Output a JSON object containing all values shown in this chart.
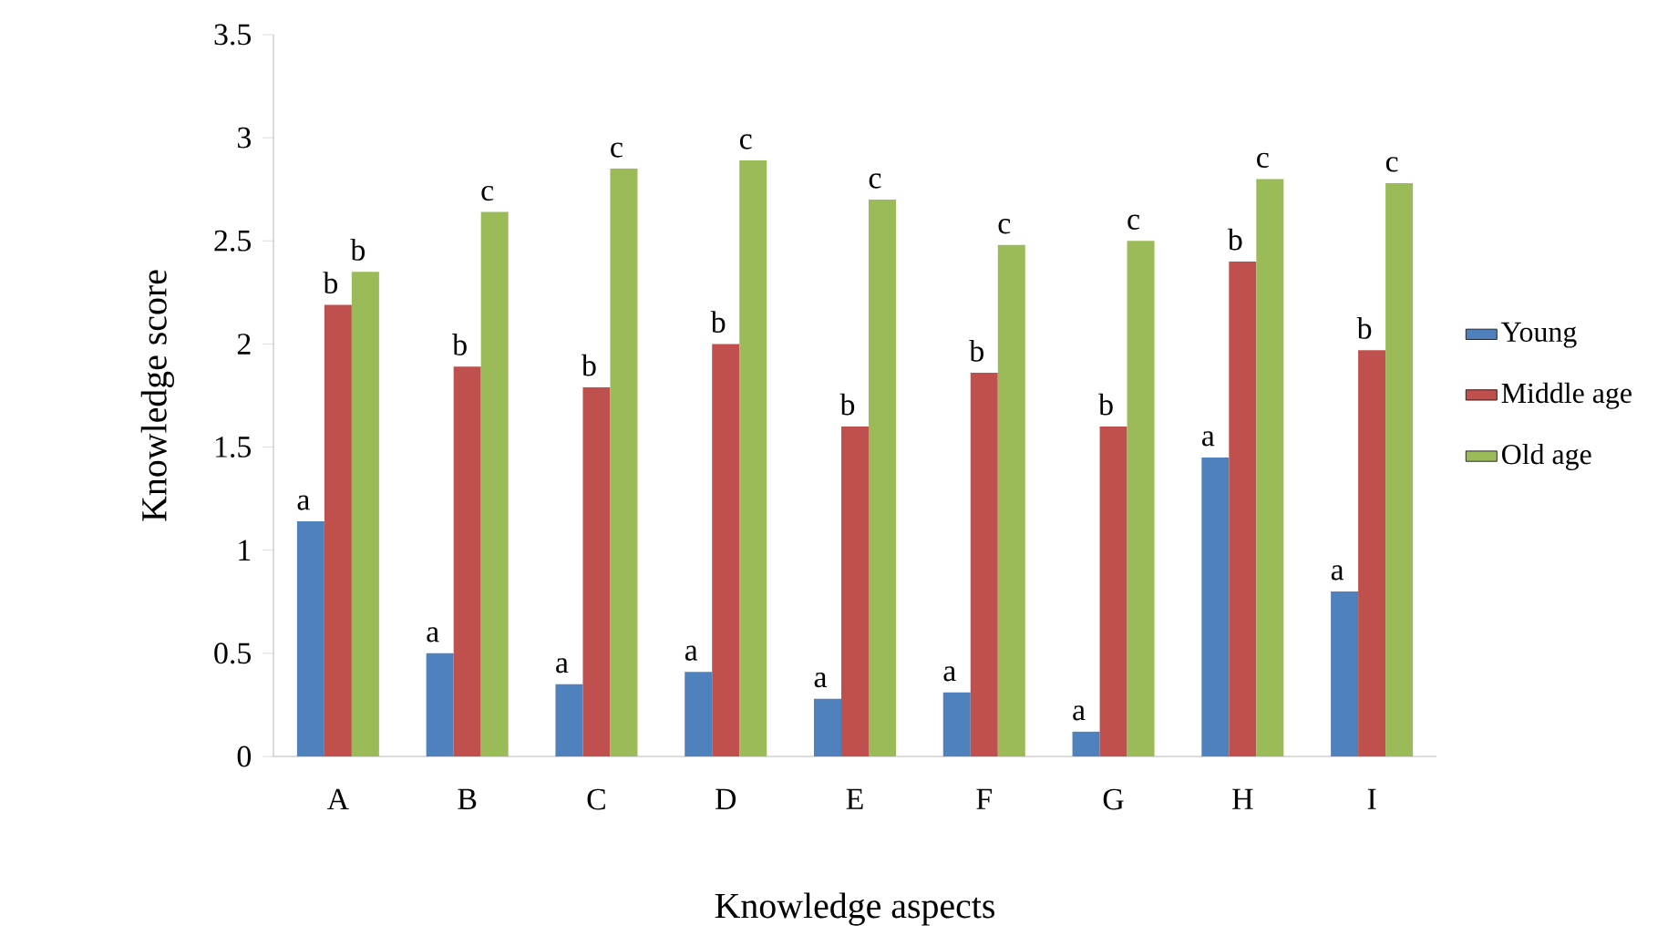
{
  "chart_data": {
    "type": "bar",
    "xlabel": "Knowledge aspects",
    "ylabel": "Knowledge score",
    "categories": [
      "A",
      "B",
      "C",
      "D",
      "E",
      "F",
      "G",
      "H",
      "I"
    ],
    "series": [
      {
        "name": "Young",
        "color": "#4f81bd",
        "values": [
          1.14,
          0.5,
          0.35,
          0.41,
          0.28,
          0.31,
          0.12,
          1.45,
          0.8
        ],
        "value_labels": [
          "a",
          "a",
          "a",
          "a",
          "a",
          "a",
          "a",
          "a",
          "a"
        ]
      },
      {
        "name": "Middle age",
        "color": "#c0504d",
        "values": [
          2.19,
          1.89,
          1.79,
          2.0,
          1.6,
          1.86,
          1.6,
          2.4,
          1.97
        ],
        "value_labels": [
          "b",
          "b",
          "b",
          "b",
          "b",
          "b",
          "b",
          "b",
          "b"
        ]
      },
      {
        "name": "Old age",
        "color": "#9bbb59",
        "values": [
          2.35,
          2.64,
          2.85,
          2.89,
          2.7,
          2.48,
          2.5,
          2.8,
          2.78
        ],
        "value_labels": [
          "b",
          "c",
          "c",
          "c",
          "c",
          "c",
          "c",
          "c",
          "c"
        ]
      }
    ],
    "ylim": [
      0,
      3.5
    ],
    "yticks": [
      0,
      0.5,
      1,
      1.5,
      2,
      2.5,
      3,
      3.5
    ],
    "grid": false,
    "legend": "right"
  }
}
